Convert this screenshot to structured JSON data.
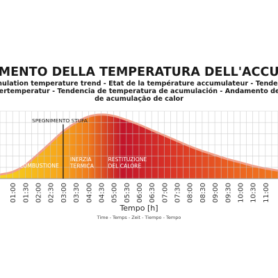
{
  "chart_data": {
    "type": "area",
    "title": "ANDAMENTO DELLA TEMPERATURA DELL'ACCUMULO",
    "subtitle_lines": [
      "Accumulation temperature trend - Etat de la température accumulateur - Tendenz zur",
      "Wärmespeichertemperatur - Tendencia de temperatura de acumulación - Andamento de temperatura",
      "de acumulação de calor"
    ],
    "xlabel": "Tempo [h]",
    "xlabel_sub": "Time - Temps - Zeit - Tiempo - Tempo",
    "ylabel": "",
    "x_ticks": [
      "01:00",
      "01:30",
      "02:00",
      "02:30",
      "03:00",
      "03:30",
      "04:00",
      "04:30",
      "05:00",
      "05:30",
      "06:00",
      "06:30",
      "07:00",
      "07:30",
      "08:00",
      "08:30",
      "09:00",
      "09:30",
      "10:00",
      "10:30",
      "11:00"
    ],
    "xlim": [
      0.5,
      11.5
    ],
    "ylim": [
      0,
      1
    ],
    "grid": true,
    "x": [
      0.5,
      1.0,
      1.5,
      2.0,
      2.5,
      3.0,
      3.5,
      4.0,
      4.5,
      5.0,
      5.5,
      6.0,
      6.5,
      7.0,
      7.5,
      8.0,
      8.5,
      9.0,
      9.5,
      10.0,
      10.5,
      11.0,
      11.5
    ],
    "y": [
      0.06,
      0.1,
      0.2,
      0.36,
      0.53,
      0.7,
      0.83,
      0.92,
      0.95,
      0.93,
      0.87,
      0.8,
      0.72,
      0.64,
      0.56,
      0.48,
      0.41,
      0.35,
      0.29,
      0.24,
      0.19,
      0.15,
      0.12
    ],
    "phases": [
      {
        "label_lines": [
          "COMBUSTIONE"
        ],
        "x_start": 0.5,
        "x_end": 3.0
      },
      {
        "label_lines": [
          "INERZIA",
          "TERMICA"
        ],
        "x_start": 3.0,
        "x_end": 4.5
      },
      {
        "label_lines": [
          "RESTITUZIONE",
          "DEL CALORE"
        ],
        "x_start": 4.5,
        "x_end": 11.5
      }
    ],
    "annotations": [
      {
        "text": "SPEGNIMENTO STUFA",
        "x": 3.0
      }
    ]
  }
}
